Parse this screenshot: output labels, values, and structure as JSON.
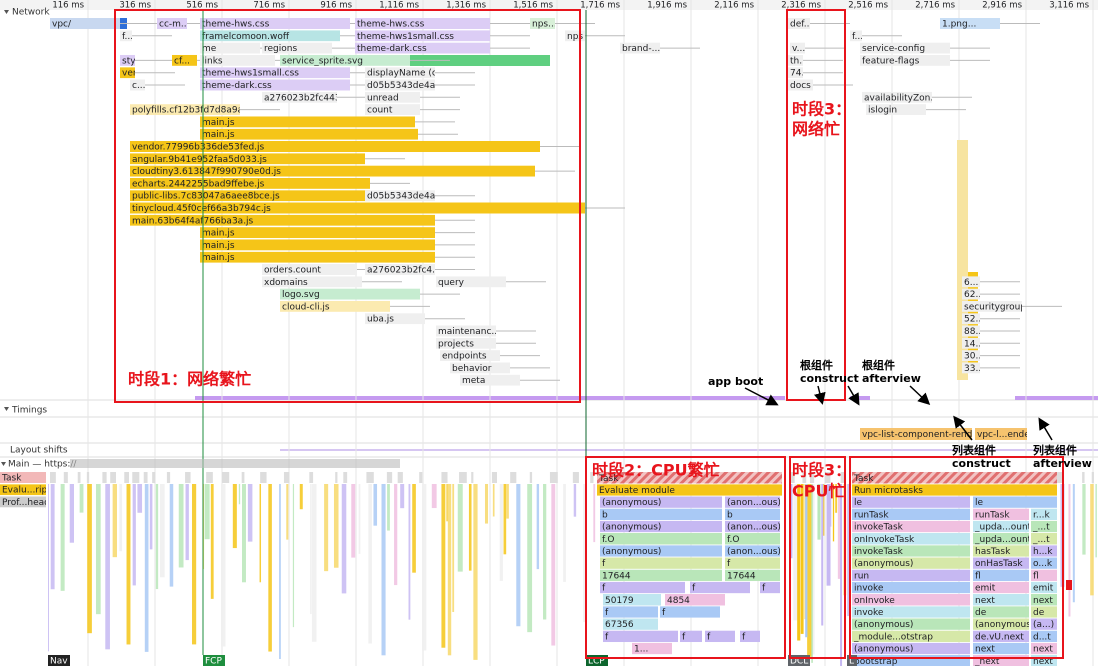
{
  "tracks": {
    "network": "Network",
    "timings": "Timings",
    "layout_shifts": "Layout shifts",
    "main": "Main — https://"
  },
  "ruler": [
    "116 ms",
    "316 ms",
    "516 ms",
    "716 ms",
    "916 ms",
    "1,116 ms",
    "1,316 ms",
    "1,516 ms",
    "1,716 ms",
    "1,916 ms",
    "2,116 ms",
    "2,316 ms",
    "2,516 ms",
    "2,716 ms",
    "2,916 ms",
    "3,116 ms"
  ],
  "network": [
    "vpc/",
    "cc-m...",
    "theme-hws.css",
    "theme-hws.css",
    "nps...",
    "def...",
    "1.png...",
    "f...",
    "framelcomoon.woff",
    "theme-hws1small.css",
    "nps",
    "f...",
    "me",
    "regions",
    "theme-dark.css",
    "brand-...",
    "v...",
    "service-config",
    "sty",
    "cf...",
    "links",
    "service_sprite.svg",
    "th...",
    "feature-flags",
    "ven",
    "theme-hws1small.css",
    "displayName (co...",
    "74...",
    "c...",
    "theme-dark.css",
    "d05b5343de4a...",
    "docs",
    "a276023b2fc443...",
    "unread",
    "availabilityZon...",
    "polyfills.cf12b3fd7d8a9aa4.js",
    "count",
    "islogin",
    "main.js",
    "main.js",
    "vendor.77996b336de53fed.js",
    "angular.9b41e952faa5d033.js",
    "cloudtiny3.613847f990790e0d.js",
    "echarts.2442255bad9ffebe.js",
    "public-libs.7c83047a6aee8bce.js",
    "d05b5343de4a...",
    "tinycloud.45f0cef66a3b794c.js",
    "main.63b64f4af766ba3a.js",
    "main.js",
    "main.js",
    "main.js",
    "orders.count",
    "a276023b2fc4...",
    "xdomains",
    "query",
    "logo.svg",
    "cloud-cli.js",
    "uba.js",
    "maintenanc...",
    "projects",
    "endpoints",
    "behavior",
    "meta",
    "6...",
    "62...",
    "securitygroup...",
    "52...",
    "88...",
    "14...",
    "30...",
    "33..."
  ],
  "timings": [
    "vpc-list-component-render",
    "vpc-l...ender"
  ],
  "main_left": [
    "Task",
    "Evalu...ript",
    "Prof...head"
  ],
  "flame_cpu": [
    "Task",
    "Evaluate module",
    "(anonymous)",
    "(anon...ous)",
    "b",
    "b",
    "(anonymous)",
    "(anon...ous)",
    "f.O",
    "f.O",
    "(anonymous)",
    "(anon...ous)",
    "f",
    "f",
    "17644",
    "17644",
    "f",
    "f",
    "f",
    "50179",
    "4854",
    "f",
    "f",
    "67356",
    "f",
    "f",
    "f",
    "f",
    "1..."
  ],
  "flame_right": {
    "task": "Task",
    "microtasks": "Run microtasks",
    "rows": [
      [
        "le",
        "le"
      ],
      [
        "runTask",
        "runTask",
        "r...k"
      ],
      [
        "invokeTask",
        "_upda...ount",
        "_...t"
      ],
      [
        "onInvokeTask",
        "_upda...ount",
        "_...t"
      ],
      [
        "invokeTask",
        "hasTask",
        "h...k"
      ],
      [
        "(anonymous)",
        "onHasTask",
        "o...k"
      ],
      [
        "run",
        "fl",
        "fl"
      ],
      [
        "invoke",
        "emit",
        "emit"
      ],
      [
        "onInvoke",
        "next",
        "next"
      ],
      [
        "invoke",
        "de",
        "de"
      ],
      [
        "(anonymous)",
        "(anonymous)",
        "(a...)"
      ],
      [
        "_module...otstrap",
        "de.vU.next",
        "d...t"
      ],
      [
        "(anonymous)",
        "next",
        "next"
      ],
      [
        "bootstrap",
        "_next",
        "next"
      ]
    ]
  },
  "markers": [
    "Nav",
    "FCP",
    "LCP",
    "DCL",
    "L"
  ],
  "annotations": {
    "phase1": "时段1：网络繁忙",
    "phase2": "时段2：CPU繁忙",
    "phase3_net": [
      "时段3：",
      "网络忙"
    ],
    "phase3_cpu": [
      "时段3：",
      "CPU忙"
    ],
    "app_boot": "app boot",
    "root_construct": [
      "根组件",
      "construct"
    ],
    "root_afterview": [
      "根组件",
      "afterview"
    ],
    "list_construct": [
      "列表组件",
      "construct"
    ],
    "list_afterview": [
      "列表组件",
      "afterview"
    ]
  }
}
